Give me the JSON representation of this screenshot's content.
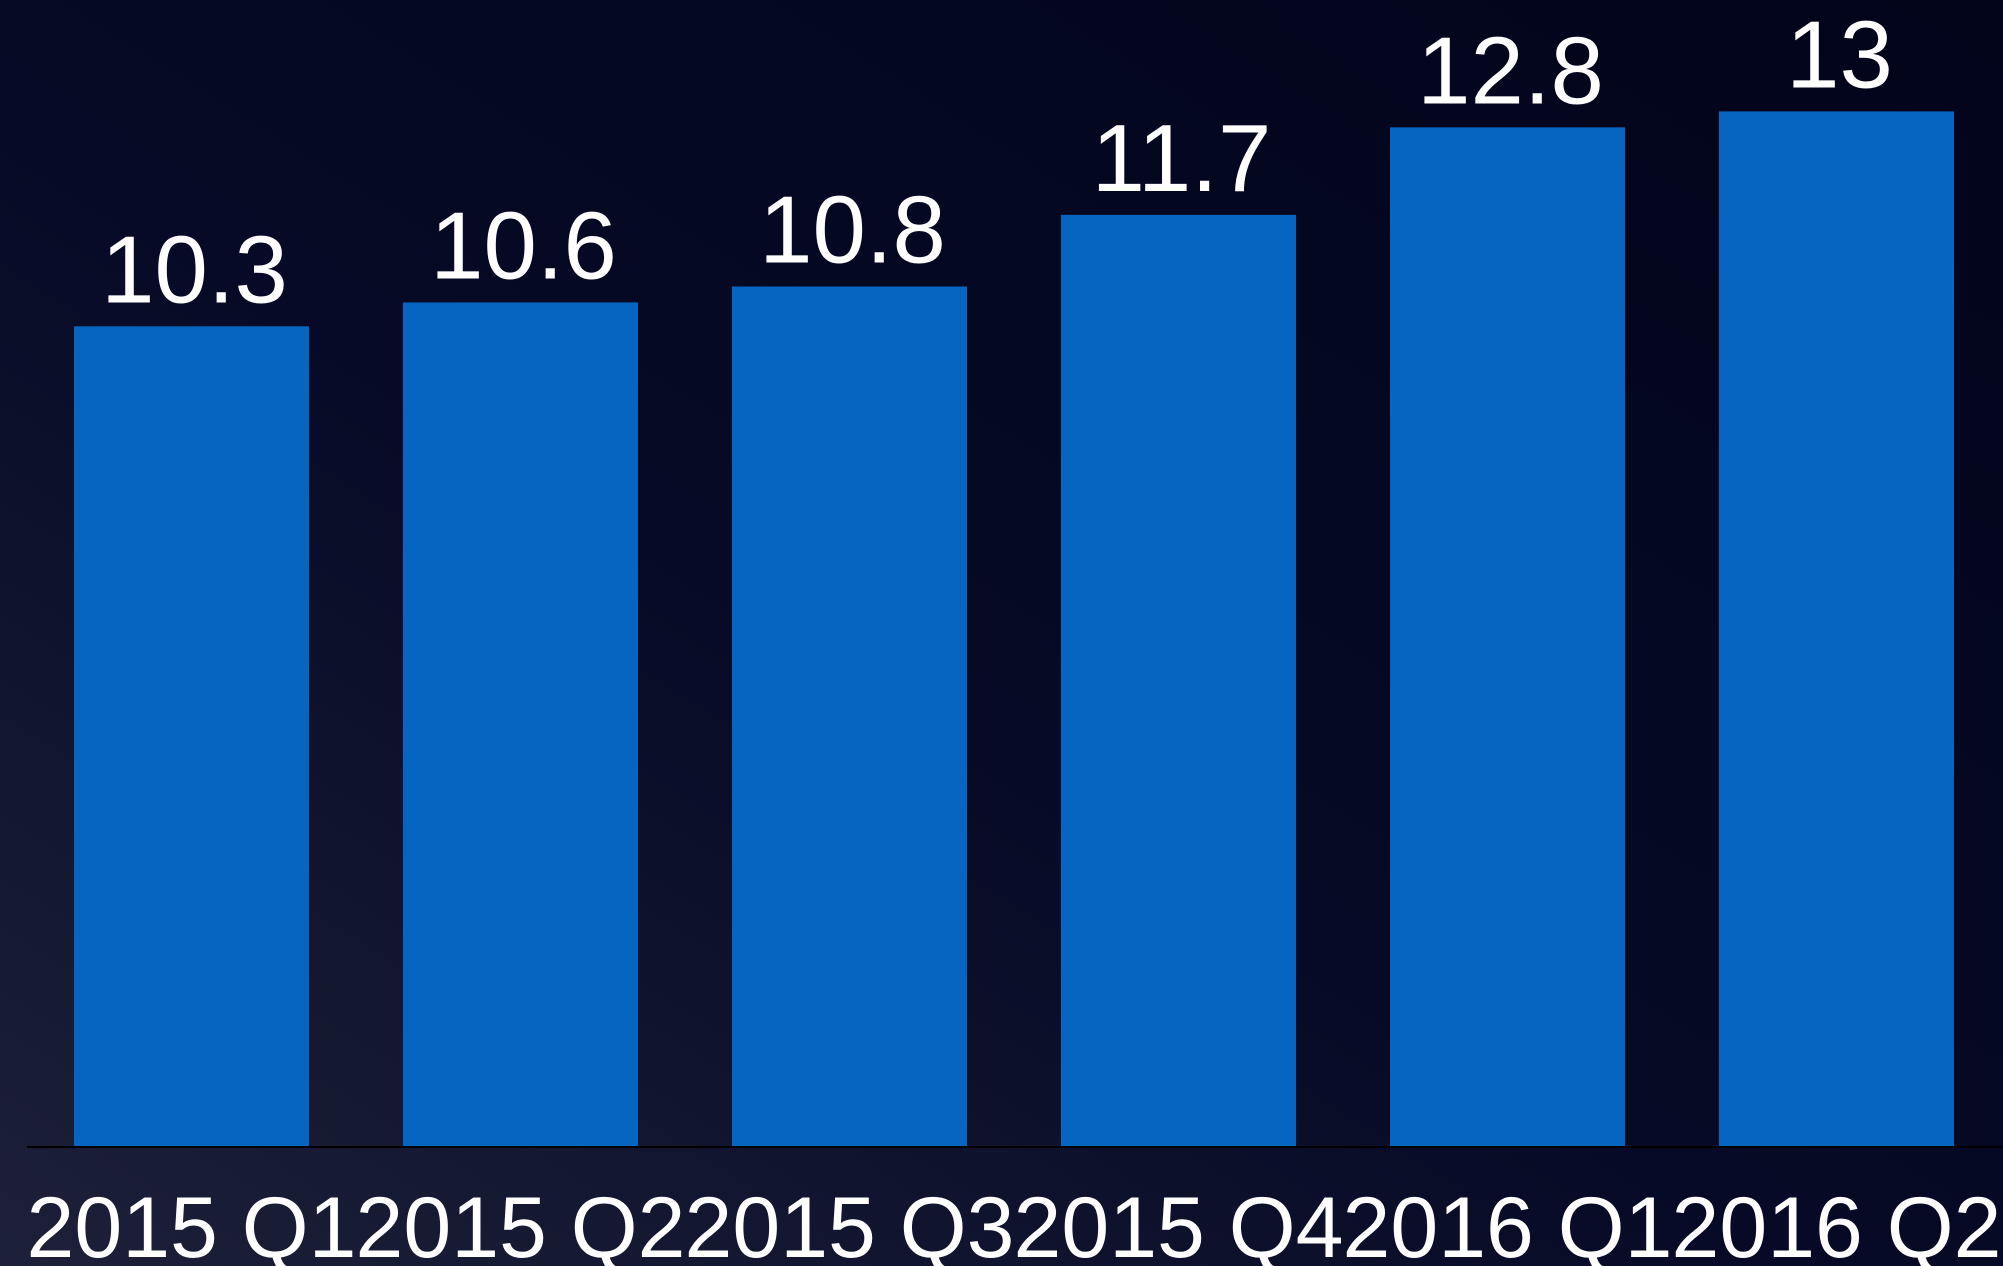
{
  "chart_data": {
    "type": "bar",
    "categories": [
      "2015 Q1",
      "2015 Q2",
      "2015 Q3",
      "2015 Q4",
      "2016 Q1",
      "2016 Q2"
    ],
    "values": [
      10.3,
      10.6,
      10.8,
      11.7,
      12.8,
      13
    ],
    "color": "#0565c0",
    "ylim": [
      0,
      14.4
    ],
    "data_labels": true
  }
}
